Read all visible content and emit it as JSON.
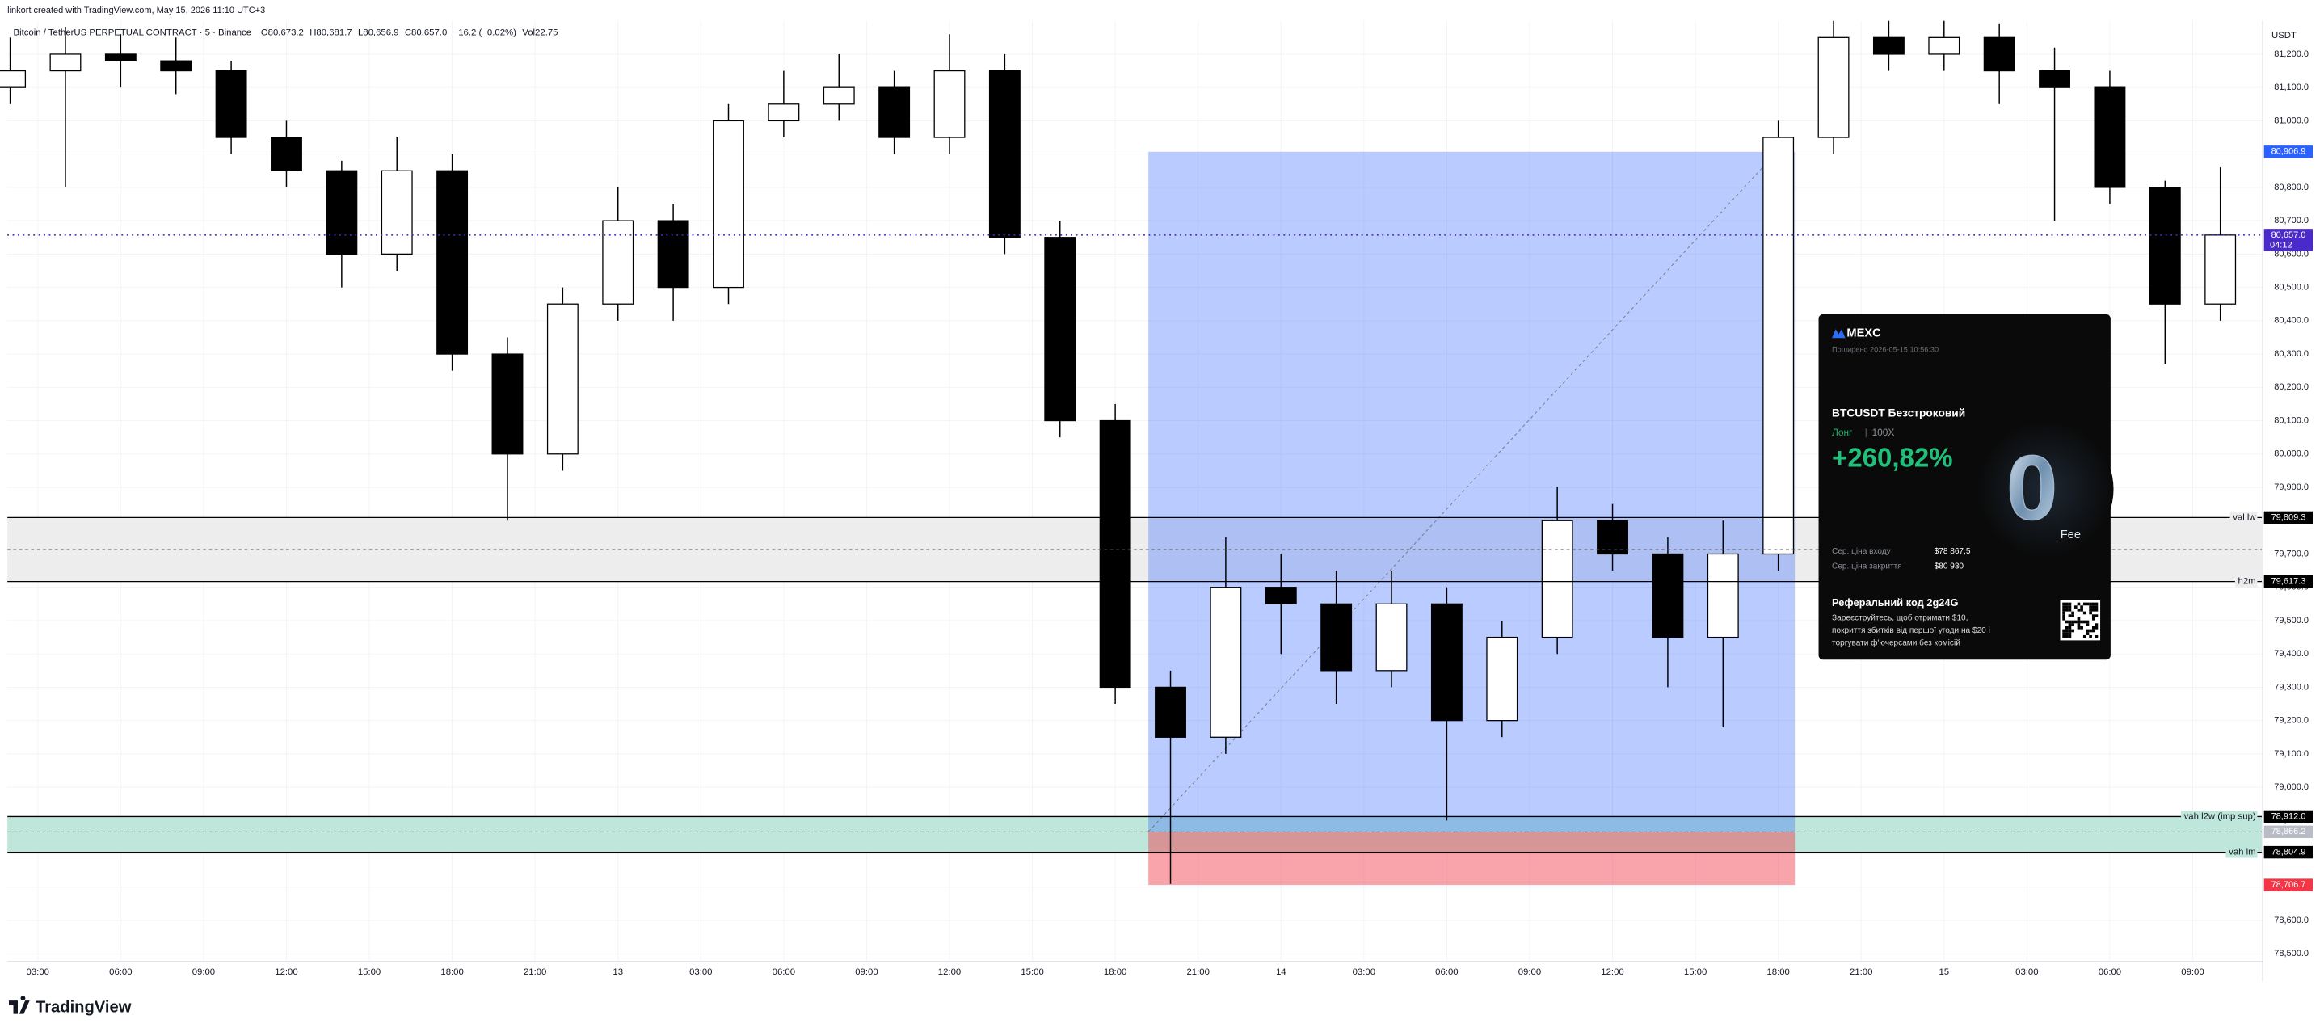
{
  "header": {
    "credit": "linkort created with TradingView.com, May 15, 2026 11:10 UTC+3"
  },
  "chart_data": {
    "type": "candlestick",
    "title": "Bitcoin / TetherUS PERPETUAL CONTRACT · 5 · Binance",
    "legend_values": [
      "O80,673.2",
      "H80,681.7",
      "L80,656.9",
      "C80,657.0",
      "−16.2 (−0.02%)",
      "Vol22.75"
    ],
    "y_unit": "USDT",
    "up_color": "#ffffff",
    "down_color": "#000000",
    "border_color": "#000000",
    "x": [
      -1,
      1,
      3,
      5,
      7,
      9,
      11,
      13,
      15,
      17,
      19,
      21,
      23,
      25,
      27,
      29,
      31,
      33,
      35,
      37,
      39,
      41,
      43,
      45,
      47,
      49,
      51,
      53,
      55,
      57,
      59,
      61,
      63,
      65,
      67,
      69,
      71,
      73,
      75,
      77,
      79
    ],
    "open": [
      81100,
      81150,
      81200,
      81180,
      81150,
      80950,
      80850,
      80600,
      80850,
      80300,
      80000,
      80450,
      80700,
      80500,
      81000,
      81050,
      81100,
      80950,
      81150,
      80650,
      80100,
      79300,
      79150,
      79600,
      79550,
      79350,
      79550,
      79200,
      79450,
      79800,
      79700,
      79450,
      79700,
      80950,
      81250,
      81200,
      81250,
      81150,
      81100,
      80800,
      80450
    ],
    "high": [
      81250,
      81280,
      81260,
      81250,
      81180,
      81000,
      80880,
      80950,
      80900,
      80350,
      80500,
      80800,
      80750,
      81050,
      81150,
      81200,
      81150,
      81260,
      81200,
      80700,
      80150,
      79350,
      79750,
      79700,
      79650,
      79650,
      79600,
      79500,
      79900,
      79850,
      79750,
      79800,
      81000,
      81300,
      81300,
      81300,
      81290,
      81220,
      81150,
      80820,
      80860
    ],
    "low": [
      81050,
      80800,
      81100,
      81080,
      80900,
      80800,
      80500,
      80550,
      80250,
      79800,
      79950,
      80400,
      80400,
      80450,
      80950,
      81000,
      80900,
      80900,
      80600,
      80050,
      79250,
      78710,
      79100,
      79400,
      79250,
      79300,
      78900,
      79150,
      79400,
      79650,
      79300,
      79180,
      79650,
      80900,
      81150,
      81150,
      81050,
      80700,
      80750,
      80270,
      80400
    ],
    "close": [
      81150,
      81200,
      81180,
      81150,
      80950,
      80850,
      80600,
      80850,
      80300,
      80000,
      80450,
      80700,
      80500,
      81000,
      81050,
      81100,
      80950,
      81150,
      80650,
      80100,
      79300,
      79150,
      79600,
      79550,
      79350,
      79550,
      79200,
      79450,
      79800,
      79700,
      79450,
      79700,
      80950,
      81250,
      81200,
      81250,
      81150,
      81100,
      80800,
      80450,
      80657
    ],
    "xlim": [
      -1.1,
      80.5
    ],
    "xticks": [
      {
        "value": 0,
        "label": "03:00"
      },
      {
        "value": 3,
        "label": "06:00"
      },
      {
        "value": 6,
        "label": "09:00"
      },
      {
        "value": 9,
        "label": "12:00"
      },
      {
        "value": 12,
        "label": "15:00"
      },
      {
        "value": 15,
        "label": "18:00"
      },
      {
        "value": 18,
        "label": "21:00"
      },
      {
        "value": 21,
        "label": "13"
      },
      {
        "value": 24,
        "label": "03:00"
      },
      {
        "value": 27,
        "label": "06:00"
      },
      {
        "value": 30,
        "label": "09:00"
      },
      {
        "value": 33,
        "label": "12:00"
      },
      {
        "value": 36,
        "label": "15:00"
      },
      {
        "value": 39,
        "label": "18:00"
      },
      {
        "value": 42,
        "label": "21:00"
      },
      {
        "value": 45,
        "label": "14"
      },
      {
        "value": 48,
        "label": "03:00"
      },
      {
        "value": 51,
        "label": "06:00"
      },
      {
        "value": 54,
        "label": "09:00"
      },
      {
        "value": 57,
        "label": "12:00"
      },
      {
        "value": 60,
        "label": "15:00"
      },
      {
        "value": 63,
        "label": "18:00"
      },
      {
        "value": 66,
        "label": "21:00"
      },
      {
        "value": 69,
        "label": "15"
      },
      {
        "value": 72,
        "label": "03:00"
      },
      {
        "value": 75,
        "label": "06:00"
      },
      {
        "value": 78,
        "label": "09:00"
      }
    ],
    "ylim": [
      78480,
      81300
    ],
    "yticks": [
      {
        "value": 78500,
        "label": "78,500.0"
      },
      {
        "value": 78600,
        "label": "78,600.0"
      },
      {
        "value": 78700,
        "label": "78,700.0"
      },
      {
        "value": 78800,
        "label": "78,800.0"
      },
      {
        "value": 78900,
        "label": "78,900.0"
      },
      {
        "value": 79000,
        "label": "79,000.0"
      },
      {
        "value": 79100,
        "label": "79,100.0"
      },
      {
        "value": 79200,
        "label": "79,200.0"
      },
      {
        "value": 79300,
        "label": "79,300.0"
      },
      {
        "value": 79400,
        "label": "79,400.0"
      },
      {
        "value": 79500,
        "label": "79,500.0"
      },
      {
        "value": 79600,
        "label": "79,600.0"
      },
      {
        "value": 79700,
        "label": "79,700.0"
      },
      {
        "value": 79800,
        "label": "79,800.0"
      },
      {
        "value": 79900,
        "label": "79,900.0"
      },
      {
        "value": 80000,
        "label": "80,000.0"
      },
      {
        "value": 80100,
        "label": "80,100.0"
      },
      {
        "value": 80200,
        "label": "80,200.0"
      },
      {
        "value": 80300,
        "label": "80,300.0"
      },
      {
        "value": 80400,
        "label": "80,400.0"
      },
      {
        "value": 80500,
        "label": "80,500.0"
      },
      {
        "value": 80600,
        "label": "80,600.0"
      },
      {
        "value": 80700,
        "label": "80,700.0"
      },
      {
        "value": 80800,
        "label": "80,800.0"
      },
      {
        "value": 80900,
        "label": "80,900.0"
      },
      {
        "value": 81000,
        "label": "81,000.0"
      },
      {
        "value": 81100,
        "label": "81,100.0"
      },
      {
        "value": 81200,
        "label": "81,200.0"
      }
    ],
    "grid": true,
    "zones": [
      {
        "color": "#ededed",
        "upper": {
          "label": "val lw",
          "value": 79809.3,
          "value_label": "79,809.3"
        },
        "mid": 79713.3,
        "lower": {
          "label": "h2m",
          "value": 79617.3,
          "value_label": "79,617.3"
        }
      },
      {
        "color": "#bfe6da",
        "upper": {
          "label": "vah l2w (imp sup)",
          "value": 78912.0,
          "value_label": "78,912.0"
        },
        "lower": {
          "label": "vah lm",
          "value": 78804.9,
          "value_label": "78,804.9"
        }
      }
    ],
    "position": {
      "start_x": 40.2,
      "end_x": 63.6,
      "entry": {
        "value": 78866.2,
        "label": "78,866.2"
      },
      "target": {
        "value": 80906.9,
        "label": "80,906.9",
        "color": "#2962ff"
      },
      "stop": {
        "value": 78706.7,
        "label": "78,706.7",
        "color": "#f23645"
      }
    },
    "last_price": {
      "value": 80657.0,
      "label": "80,657.0",
      "countdown": "04:12",
      "color": "#4a2ac8"
    }
  },
  "card": {
    "brand": "MEXC",
    "shared": "Поширено 2026-05-15 10:56:30",
    "symbol": "BTCUSDT Безстроковий",
    "side": "Лонг",
    "leverage": "100X",
    "pnl": "+260,82%",
    "entry_label": "Сер. ціна входу",
    "entry_value": "$78 867,5",
    "close_label": "Сер. ціна закриття",
    "close_value": "$80 930",
    "referral": "Реферальний код  2g24G",
    "promo": [
      "Зареєструйтесь, щоб отримати $10,",
      "покриття збитків від першої угоди на $20 і",
      "торгувати ф'ючерсами без комісій"
    ],
    "badge": "0",
    "badge_sub": "Fee"
  },
  "footer": {
    "brand": "TradingView"
  }
}
